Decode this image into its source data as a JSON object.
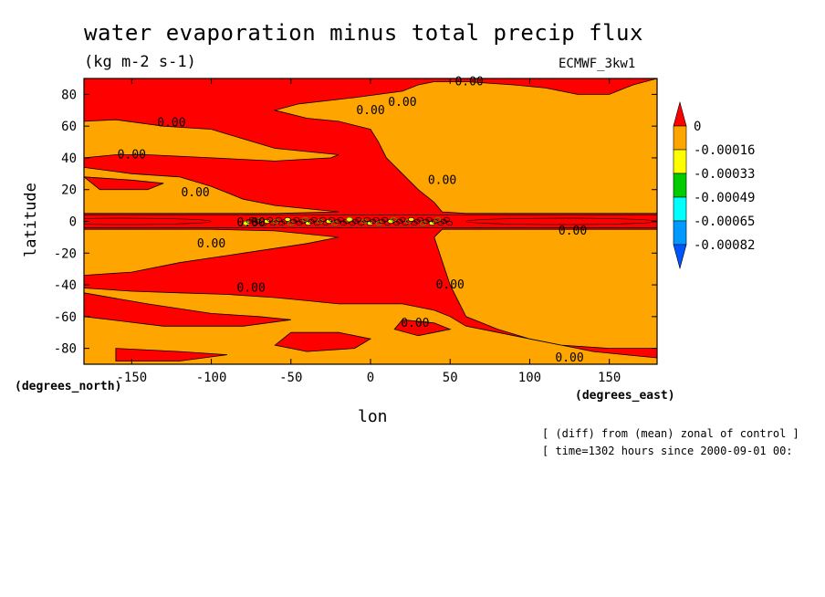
{
  "chart_data": {
    "type": "contour",
    "title": "water evaporation minus total precip flux",
    "subtitle": "(kg m-2 s-1)",
    "model": "ECMWF_3kw1",
    "xlabel": "lon",
    "ylabel": "latitude",
    "x_unit_label": "(degrees_east)",
    "y_unit_label": "(degrees_north)",
    "xlim": [
      -180,
      180
    ],
    "ylim": [
      -90,
      90
    ],
    "x_ticks": [
      -150,
      -100,
      -50,
      0,
      50,
      100,
      150
    ],
    "y_ticks": [
      80,
      60,
      40,
      20,
      0,
      -20,
      -40,
      -60,
      -80
    ],
    "x_tick_labels": [
      "-150",
      "-100",
      "-50",
      "0",
      "50",
      "100",
      "150"
    ],
    "y_tick_labels": [
      "80",
      "60",
      "40",
      "20",
      "0",
      "-20",
      "-40",
      "-60",
      "-80"
    ],
    "contour_label": "0.00",
    "legend": {
      "levels": [
        "0",
        "-0.00016",
        "-0.00033",
        "-0.00049",
        "-0.00065",
        "-0.00082"
      ],
      "colors": [
        "#ff0000",
        "#ffa500",
        "#ffff00",
        "#00cc00",
        "#00ffff",
        "#0099ff",
        "#0055ff"
      ]
    },
    "regions": [
      {
        "level": "-0.00016",
        "color": "#ffa500",
        "description_lat_lon": [
          [
            -180,
            65
          ],
          [
            -20,
            45
          ],
          [
            -180,
            20
          ]
        ]
      },
      {
        "level": "0",
        "color": "#ff0000"
      }
    ]
  },
  "annotations": {
    "note1": "[ (diff) from (mean) zonal of control ]",
    "note2": "[ time=1302 hours since 2000-09-01 00:"
  },
  "colors": {
    "red": "#ff0000",
    "orange": "#ffa500",
    "yellow": "#ffff00",
    "green": "#00cc00",
    "cyan": "#00ffff",
    "blue": "#0099ff",
    "darkblue": "#0055ff"
  }
}
